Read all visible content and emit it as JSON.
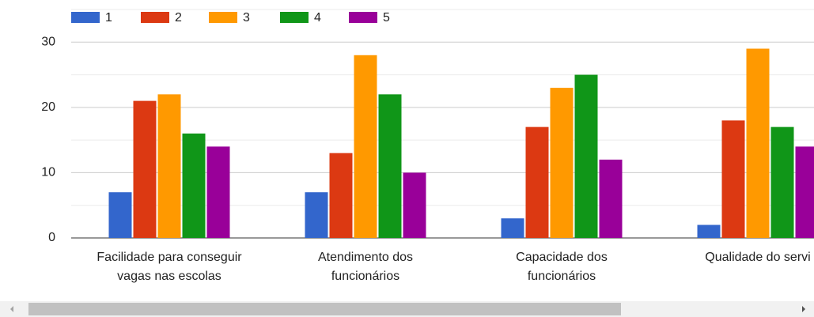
{
  "chart_data": {
    "type": "bar",
    "categories": [
      [
        "Facilidade para conseguir",
        "vagas nas escolas"
      ],
      [
        "Atendimento dos",
        "funcionários"
      ],
      [
        "Capacidade dos",
        "funcionários"
      ],
      [
        "Qualidade do servi"
      ]
    ],
    "series": [
      {
        "name": "1",
        "color": "#3366cc",
        "values": [
          7,
          7,
          3,
          2
        ]
      },
      {
        "name": "2",
        "color": "#dc3912",
        "values": [
          21,
          13,
          17,
          18
        ]
      },
      {
        "name": "3",
        "color": "#ff9900",
        "values": [
          22,
          28,
          23,
          29
        ]
      },
      {
        "name": "4",
        "color": "#109618",
        "values": [
          16,
          22,
          25,
          17
        ]
      },
      {
        "name": "5",
        "color": "#990099",
        "values": [
          14,
          10,
          12,
          14
        ]
      }
    ],
    "ylim": [
      0,
      35
    ],
    "yticks": [
      0,
      10,
      20,
      30
    ],
    "minor_yticks": [
      5,
      15,
      25,
      35
    ],
    "grid": true,
    "legend": "top"
  }
}
